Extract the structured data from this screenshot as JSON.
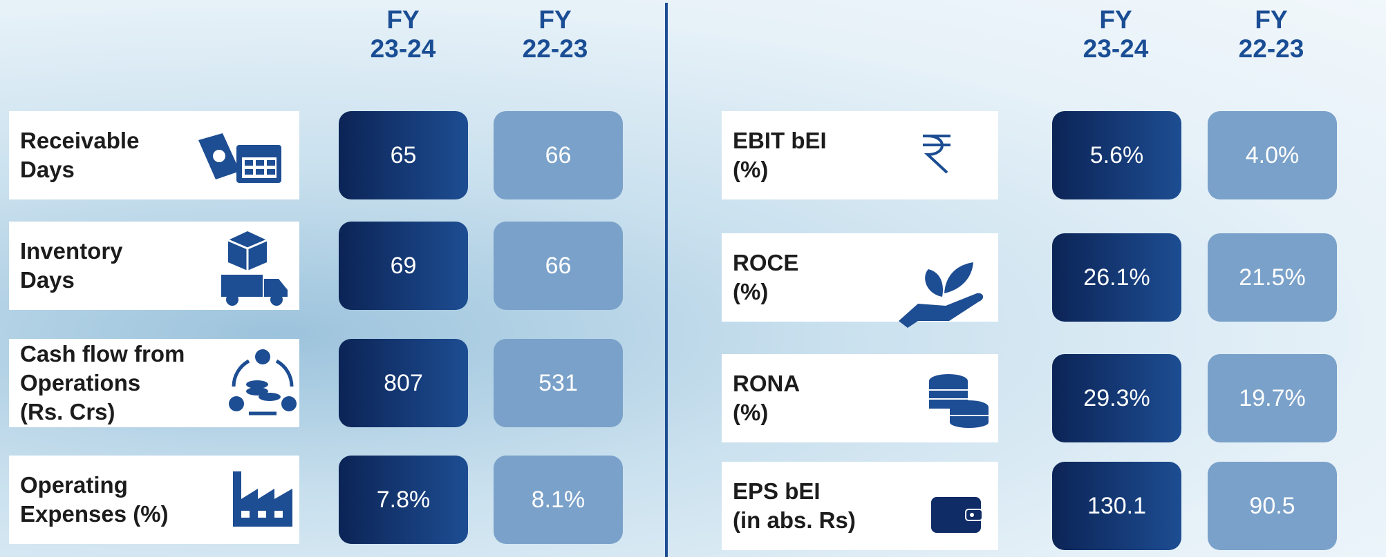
{
  "left": {
    "headers": [
      [
        "FY",
        "23-24"
      ],
      [
        "FY",
        "22-23"
      ]
    ],
    "rows": [
      {
        "label": [
          "Receivable",
          "Days"
        ],
        "values": [
          "65",
          "66"
        ]
      },
      {
        "label": [
          "Inventory",
          "Days"
        ],
        "values": [
          "69",
          "66"
        ]
      },
      {
        "label": [
          "Cash flow from",
          "Operations",
          "(Rs. Crs)"
        ],
        "values": [
          "807",
          "531"
        ]
      },
      {
        "label": [
          "Operating",
          "Expenses (%)"
        ],
        "values": [
          "7.8%",
          "8.1%"
        ]
      }
    ]
  },
  "right": {
    "headers": [
      [
        "FY",
        "23-24"
      ],
      [
        "FY",
        "22-23"
      ]
    ],
    "rows": [
      {
        "label": [
          "EBIT bEI",
          "(%)"
        ],
        "values": [
          "5.6%",
          "4.0%"
        ]
      },
      {
        "label": [
          "ROCE",
          "(%)"
        ],
        "values": [
          "26.1%",
          "21.5%"
        ]
      },
      {
        "label": [
          "RONA",
          "(%)"
        ],
        "values": [
          "29.3%",
          "19.7%"
        ]
      },
      {
        "label": [
          "EPS bEI",
          "(in abs. Rs)"
        ],
        "values": [
          "130.1",
          "90.5"
        ]
      }
    ]
  }
}
